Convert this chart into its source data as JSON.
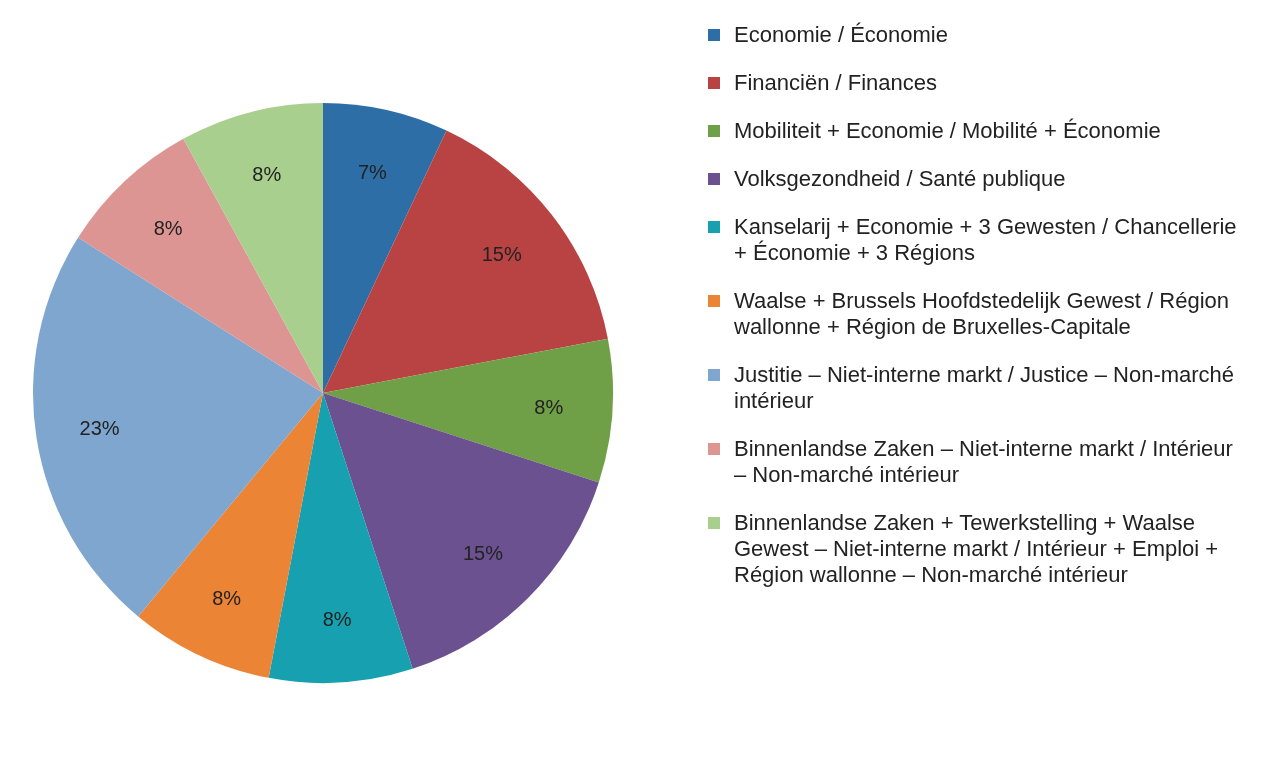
{
  "chart_data": {
    "type": "pie",
    "categories": [
      "Economie / Économie",
      "Financiën / Finances",
      "Mobiliteit + Economie / Mobilité + Économie",
      "Volksgezondheid / Santé publique",
      "Kanselarij + Economie + 3 Gewesten / Chancellerie + Économie + 3 Régions",
      "Waalse + Brussels Hoofdstedelijk Gewest / Région wallonne + Région de Bruxelles-Capitale",
      "Justitie – Niet-interne markt / Justice – Non-marché intérieur",
      "Binnenlandse Zaken – Niet-interne markt / Intérieur – Non-marché intérieur",
      "Binnenlandse Zaken + Tewerkstelling + Waalse Gewest – Niet-interne markt / Intérieur + Emploi + Région wallonne – Non-marché intérieur"
    ],
    "values": [
      7,
      15,
      8,
      15,
      8,
      8,
      23,
      8,
      8
    ],
    "value_labels": [
      "7%",
      "15%",
      "8%",
      "15%",
      "8%",
      "8%",
      "23%",
      "8%",
      "8%"
    ],
    "colors": [
      "#2e6ea6",
      "#b94343",
      "#6fa047",
      "#6b5190",
      "#17a0b0",
      "#ec8436",
      "#7ea6cf",
      "#dd9593",
      "#a8cf8d"
    ],
    "legend": "right"
  }
}
